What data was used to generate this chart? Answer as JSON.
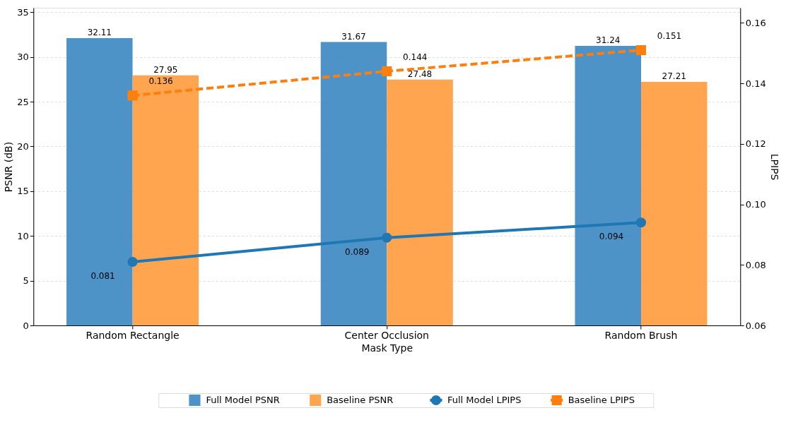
{
  "chart_data": {
    "type": "bar",
    "xlabel": "Mask Type",
    "ylabel": "PSNR (dB)",
    "y2label": "LPIPS",
    "categories": [
      "Random Rectangle",
      "Center Occlusion",
      "Random Brush"
    ],
    "series": [
      {
        "name": "Full Model PSNR",
        "type": "bar",
        "color": "#3a87c1",
        "values": [
          32.11,
          31.67,
          31.24
        ]
      },
      {
        "name": "Baseline PSNR",
        "type": "bar",
        "color": "#ff9a3c",
        "values": [
          27.95,
          27.48,
          27.21
        ]
      },
      {
        "name": "Full Model LPIPS",
        "type": "line",
        "axis": "y2",
        "color": "#1f77b4",
        "marker": "circle",
        "line_style": "solid",
        "values": [
          0.081,
          0.089,
          0.094
        ]
      },
      {
        "name": "Baseline LPIPS",
        "type": "line",
        "axis": "y2",
        "color": "#ff7f0e",
        "marker": "square",
        "line_style": "dashed",
        "values": [
          0.136,
          0.144,
          0.151
        ]
      }
    ],
    "ylim": [
      0,
      35.5
    ],
    "yticks": [
      0,
      5,
      10,
      15,
      20,
      25,
      30,
      35
    ],
    "y2lim": [
      0.06,
      0.165
    ],
    "y2ticks": [
      0.06,
      0.08,
      {
        "value": 0.1,
        "label": "0.10"
      },
      0.12,
      0.14,
      0.16
    ],
    "grid": "y",
    "legend": "bottom",
    "data_labels": true
  }
}
